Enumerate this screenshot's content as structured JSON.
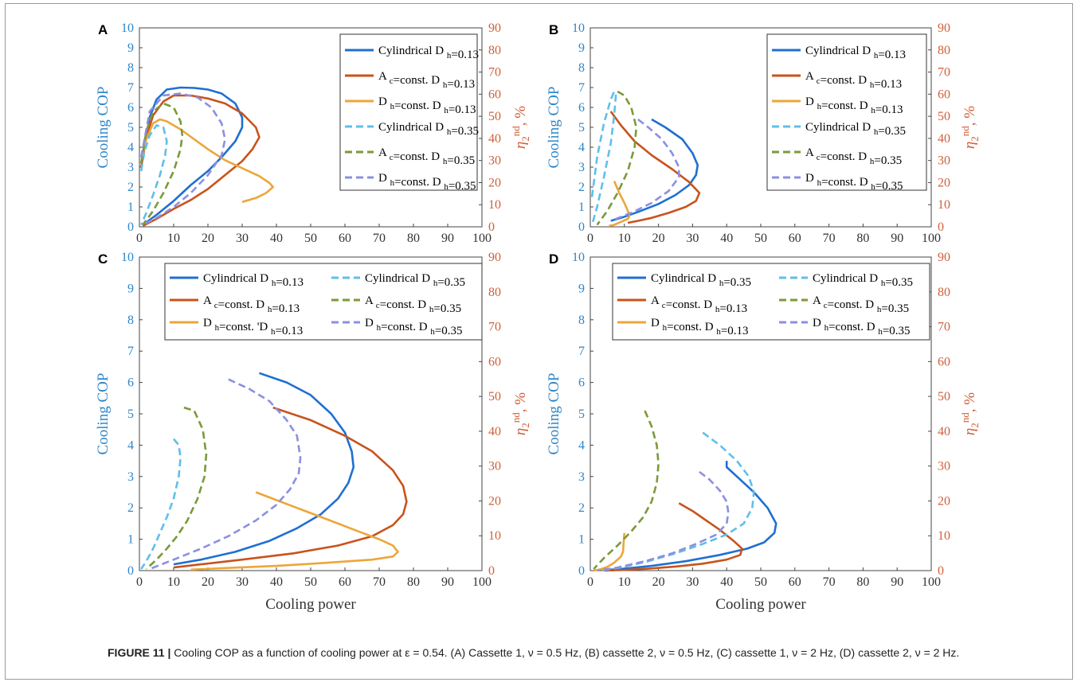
{
  "caption": {
    "figure_label": "FIGURE 11 |",
    "text": "Cooling COP as a function of cooling power at ε = 0.54. (A) Cassette 1, ν = 0.5 Hz, (B) cassette 2, ν = 0.5 Hz, (C) cassette 1, ν = 2 Hz, (D) cassette 2, ν = 2 Hz."
  },
  "colors": {
    "left_axis": "#2e86c8",
    "right_axis": "#d0603a",
    "blue": "#1f6fd1",
    "red": "#c8531c",
    "orange": "#eca63a",
    "lightblue": "#5fbfe8",
    "green": "#7b9a3a",
    "purple": "#8c8fe0"
  },
  "chart_data": [
    {
      "panel": "A",
      "type": "line",
      "xlabel": "",
      "ylabel": "Cooling COP",
      "y2label": "η2nd, %",
      "xlim": [
        0,
        100
      ],
      "ylim": [
        0,
        10
      ],
      "y2lim": [
        0,
        90
      ],
      "xticks": [
        0,
        10,
        20,
        30,
        40,
        50,
        60,
        70,
        80,
        90,
        100
      ],
      "yticks": [
        0,
        1,
        2,
        3,
        4,
        5,
        6,
        7,
        8,
        9,
        10
      ],
      "y2ticks": [
        0,
        10,
        20,
        30,
        40,
        50,
        60,
        70,
        80,
        90
      ],
      "legend_layout": "one-column",
      "legend_position": "top-right",
      "series": [
        {
          "name": "Cylindrical D h=0.13",
          "color": "blue",
          "dash": false,
          "x": [
            0.5,
            2,
            3,
            5,
            8,
            12,
            16,
            20,
            24,
            28,
            30,
            30,
            28,
            24,
            20,
            15,
            10,
            5,
            1
          ],
          "y": [
            3.2,
            4.5,
            5.5,
            6.4,
            6.9,
            7.0,
            6.98,
            6.9,
            6.7,
            6.2,
            5.5,
            5.0,
            4.3,
            3.5,
            2.8,
            2.1,
            1.3,
            0.6,
            0.1
          ]
        },
        {
          "name": "A c=const. D h=0.13",
          "color": "red",
          "dash": false,
          "x": [
            0.5,
            2,
            4,
            7,
            10,
            15,
            20,
            25,
            30,
            34,
            35,
            33,
            30,
            25,
            20,
            15,
            10,
            5,
            1
          ],
          "y": [
            3.0,
            4.5,
            5.6,
            6.3,
            6.6,
            6.6,
            6.45,
            6.2,
            5.7,
            5.0,
            4.5,
            3.9,
            3.3,
            2.6,
            1.9,
            1.35,
            0.9,
            0.4,
            0.05
          ]
        },
        {
          "name": "D h=const. D h=0.13",
          "color": "orange",
          "dash": false,
          "x": [
            0.8,
            2,
            4,
            6,
            8,
            12,
            16,
            20,
            25,
            30,
            35,
            38,
            39,
            37,
            34,
            30
          ],
          "y": [
            3.5,
            4.4,
            5.2,
            5.4,
            5.3,
            4.9,
            4.4,
            3.9,
            3.35,
            2.95,
            2.55,
            2.2,
            2.0,
            1.7,
            1.45,
            1.25
          ]
        },
        {
          "name": "Cylindrical D h=0.35",
          "color": "lightblue",
          "dash": true,
          "x": [
            0.5,
            1.5,
            3,
            5,
            7,
            8,
            7.5,
            6,
            4,
            2,
            0.5
          ],
          "y": [
            2.8,
            3.8,
            4.6,
            5.1,
            5.0,
            4.3,
            3.6,
            2.6,
            1.6,
            0.7,
            0.1
          ]
        },
        {
          "name": "A c=const. D h=0.35",
          "color": "green",
          "dash": true,
          "x": [
            0.5,
            2,
            4,
            7,
            10,
            12,
            12.5,
            12,
            10,
            7,
            4,
            1
          ],
          "y": [
            3.2,
            4.8,
            5.8,
            6.2,
            6.0,
            5.3,
            4.6,
            3.9,
            2.8,
            1.7,
            0.8,
            0.1
          ]
        },
        {
          "name": "D h=const. D h=0.35",
          "color": "purple",
          "dash": true,
          "x": [
            0.5,
            3,
            7,
            12,
            17,
            21,
            24,
            25,
            24,
            20,
            15,
            10,
            5,
            1
          ],
          "y": [
            3.5,
            5.8,
            6.6,
            6.7,
            6.5,
            6.0,
            5.2,
            4.4,
            3.6,
            2.6,
            1.7,
            1.0,
            0.45,
            0.1
          ]
        }
      ]
    },
    {
      "panel": "B",
      "type": "line",
      "xlabel": "",
      "ylabel": "Cooling COP",
      "y2label": "η2nd, %",
      "xlim": [
        0,
        100
      ],
      "ylim": [
        0,
        10
      ],
      "y2lim": [
        0,
        90
      ],
      "xticks": [
        0,
        10,
        20,
        30,
        40,
        50,
        60,
        70,
        80,
        90,
        100
      ],
      "yticks": [
        0,
        1,
        2,
        3,
        4,
        5,
        6,
        7,
        8,
        9,
        10
      ],
      "y2ticks": [
        0,
        10,
        20,
        30,
        40,
        50,
        60,
        70,
        80,
        90
      ],
      "legend_layout": "one-column",
      "legend_position": "top-right",
      "series": [
        {
          "name": "Cylindrical D h=0.13",
          "color": "blue",
          "dash": false,
          "x": [
            18,
            22,
            27,
            30,
            31.5,
            31,
            29,
            25,
            20,
            14,
            9,
            6
          ],
          "y": [
            5.4,
            5.0,
            4.4,
            3.7,
            3.1,
            2.6,
            2.1,
            1.6,
            1.15,
            0.75,
            0.45,
            0.3
          ]
        },
        {
          "name": "A c=const. D h=0.13",
          "color": "red",
          "dash": false,
          "x": [
            6,
            9,
            13,
            18,
            24,
            29,
            32,
            31,
            28,
            23,
            18,
            14,
            11
          ],
          "y": [
            5.8,
            5.1,
            4.3,
            3.6,
            2.9,
            2.25,
            1.7,
            1.3,
            1.0,
            0.7,
            0.45,
            0.3,
            0.2
          ]
        },
        {
          "name": "D h=const. D h=0.13",
          "color": "orange",
          "dash": false,
          "x": [
            7,
            8.5,
            10,
            11,
            11.5,
            11,
            9,
            7,
            5.5
          ],
          "y": [
            2.3,
            1.7,
            1.2,
            0.8,
            0.55,
            0.4,
            0.25,
            0.1,
            0.05
          ]
        },
        {
          "name": "Cylindrical D h=0.35",
          "color": "lightblue",
          "dash": true,
          "x": [
            0.5,
            2,
            4,
            6,
            7,
            7.5,
            7,
            6,
            4,
            2,
            0.5
          ],
          "y": [
            1.5,
            3.5,
            5.2,
            6.4,
            6.8,
            6.6,
            5.6,
            4.2,
            2.5,
            1.0,
            0.1
          ]
        },
        {
          "name": "A c=const. D h=0.35",
          "color": "green",
          "dash": true,
          "x": [
            8,
            10,
            12,
            13.5,
            13,
            11,
            8,
            5,
            2
          ],
          "y": [
            6.8,
            6.6,
            6.0,
            5.0,
            4.0,
            2.8,
            1.7,
            0.8,
            0.1
          ]
        },
        {
          "name": "D h=const. D h=0.35",
          "color": "purple",
          "dash": true,
          "x": [
            14,
            17,
            21,
            24,
            26,
            26,
            23,
            18,
            12,
            6
          ],
          "y": [
            5.4,
            5.0,
            4.4,
            3.7,
            3.0,
            2.5,
            1.8,
            1.2,
            0.7,
            0.3
          ]
        }
      ]
    },
    {
      "panel": "C",
      "type": "line",
      "xlabel": "Cooling power",
      "ylabel": "Cooling COP",
      "y2label": "η2nd, %",
      "xlim": [
        0,
        100
      ],
      "ylim": [
        0,
        10
      ],
      "y2lim": [
        0,
        90
      ],
      "xticks": [
        0,
        10,
        20,
        30,
        40,
        50,
        60,
        70,
        80,
        90,
        100
      ],
      "yticks": [
        0,
        1,
        2,
        3,
        4,
        5,
        6,
        7,
        8,
        9,
        10
      ],
      "y2ticks": [
        0,
        10,
        20,
        30,
        40,
        50,
        60,
        70,
        80,
        90
      ],
      "legend_layout": "two-column",
      "legend_position": "top",
      "series": [
        {
          "name": "Cylindrical D h=0.13",
          "color": "blue",
          "dash": false,
          "x": [
            35,
            43,
            50,
            56,
            60,
            62,
            62.5,
            61,
            58,
            53,
            46,
            38,
            28,
            18,
            10
          ],
          "y": [
            6.3,
            6.0,
            5.6,
            5.0,
            4.4,
            3.8,
            3.3,
            2.8,
            2.3,
            1.8,
            1.35,
            0.95,
            0.6,
            0.35,
            0.2
          ]
        },
        {
          "name": "A c=const. D h=0.13",
          "color": "red",
          "dash": false,
          "x": [
            39,
            50,
            60,
            68,
            74,
            77,
            78,
            77,
            74,
            68,
            58,
            45,
            30,
            18,
            10
          ],
          "y": [
            5.2,
            4.8,
            4.3,
            3.8,
            3.2,
            2.7,
            2.2,
            1.8,
            1.45,
            1.1,
            0.8,
            0.55,
            0.35,
            0.2,
            0.1
          ]
        },
        {
          "name": "D h=const. 'D h=0.13",
          "color": "orange",
          "dash": false,
          "x": [
            34,
            40,
            46,
            52,
            58,
            64,
            70,
            74,
            75.5,
            74,
            68,
            55,
            40,
            25,
            15
          ],
          "y": [
            2.5,
            2.25,
            2.0,
            1.75,
            1.5,
            1.25,
            1.0,
            0.8,
            0.6,
            0.45,
            0.35,
            0.25,
            0.15,
            0.08,
            0.03
          ]
        },
        {
          "name": "Cylindrical D h=0.35",
          "color": "lightblue",
          "dash": true,
          "x": [
            10,
            11.5,
            12,
            11.5,
            10,
            8,
            6,
            4,
            2,
            0.5
          ],
          "y": [
            4.2,
            4.0,
            3.6,
            3.0,
            2.3,
            1.7,
            1.2,
            0.7,
            0.3,
            0.05
          ]
        },
        {
          "name": "A c=const. D h=0.35",
          "color": "green",
          "dash": true,
          "x": [
            13,
            16,
            18.5,
            19.5,
            19,
            17,
            14,
            11,
            8,
            5,
            2
          ],
          "y": [
            5.2,
            5.1,
            4.5,
            3.7,
            3.0,
            2.3,
            1.6,
            1.1,
            0.7,
            0.35,
            0.05
          ]
        },
        {
          "name": "D h=const. D h=0.35",
          "color": "purple",
          "dash": true,
          "x": [
            26,
            32,
            38,
            43,
            46,
            47,
            46.5,
            44,
            40,
            34,
            26,
            18,
            10,
            3
          ],
          "y": [
            6.1,
            5.8,
            5.4,
            4.8,
            4.3,
            3.6,
            3.1,
            2.6,
            2.1,
            1.6,
            1.1,
            0.7,
            0.35,
            0.05
          ]
        }
      ]
    },
    {
      "panel": "D",
      "type": "line",
      "xlabel": "Cooling power",
      "ylabel": "Cooling COP",
      "y2label": "η2nd, %",
      "xlim": [
        0,
        100
      ],
      "ylim": [
        0,
        10
      ],
      "y2lim": [
        0,
        90
      ],
      "xticks": [
        0,
        10,
        20,
        30,
        40,
        50,
        60,
        70,
        80,
        90,
        100
      ],
      "yticks": [
        0,
        1,
        2,
        3,
        4,
        5,
        6,
        7,
        8,
        9,
        10
      ],
      "y2ticks": [
        0,
        10,
        20,
        30,
        40,
        50,
        60,
        70,
        80,
        90
      ],
      "legend_layout": "two-column",
      "legend_position": "top",
      "series": [
        {
          "name": "Cylindrical D h=0.35",
          "color": "blue",
          "dash": false,
          "x": [
            40,
            40,
            41,
            44,
            48,
            52,
            54.5,
            54,
            51,
            46,
            38,
            28,
            18,
            10,
            5
          ],
          "y": [
            3.5,
            3.3,
            3.2,
            2.9,
            2.5,
            2.0,
            1.5,
            1.2,
            0.9,
            0.7,
            0.5,
            0.3,
            0.15,
            0.06,
            0.02
          ]
        },
        {
          "name": "A c=const. D h=0.13",
          "color": "red",
          "dash": false,
          "x": [
            26,
            30,
            34,
            38,
            42,
            44.5,
            44,
            40,
            33,
            25,
            17,
            10,
            4
          ],
          "y": [
            2.15,
            1.9,
            1.6,
            1.3,
            0.95,
            0.7,
            0.5,
            0.35,
            0.22,
            0.13,
            0.06,
            0.02,
            0.0
          ]
        },
        {
          "name": "D h=const. D h=0.13",
          "color": "orange",
          "dash": false,
          "x": [
            10,
            9.8,
            9.6,
            9,
            7,
            5,
            3,
            1
          ],
          "y": [
            1.2,
            0.9,
            0.6,
            0.45,
            0.25,
            0.12,
            0.04,
            0.0
          ]
        },
        {
          "name": "Cylindrical D h=0.35",
          "color": "lightblue",
          "dash": true,
          "x": [
            33,
            38,
            43,
            46.5,
            48,
            47.5,
            45,
            40,
            33,
            25,
            17,
            9,
            3
          ],
          "y": [
            4.4,
            4.0,
            3.5,
            3.0,
            2.5,
            2.0,
            1.5,
            1.15,
            0.85,
            0.55,
            0.3,
            0.1,
            0.0
          ]
        },
        {
          "name": "A c=const. D h=0.35",
          "color": "green",
          "dash": true,
          "x": [
            16,
            18,
            19.5,
            20,
            19.5,
            18,
            15.5,
            12,
            8,
            4,
            1
          ],
          "y": [
            5.1,
            4.6,
            4.0,
            3.4,
            2.8,
            2.2,
            1.7,
            1.25,
            0.8,
            0.4,
            0.05
          ]
        },
        {
          "name": "D h=const. D h=0.35",
          "color": "purple",
          "dash": true,
          "x": [
            32,
            35,
            38,
            40,
            40.5,
            40,
            37,
            31,
            24,
            16,
            8,
            2
          ],
          "y": [
            3.15,
            2.9,
            2.55,
            2.2,
            1.85,
            1.5,
            1.15,
            0.85,
            0.55,
            0.3,
            0.1,
            0.0
          ]
        }
      ]
    }
  ]
}
